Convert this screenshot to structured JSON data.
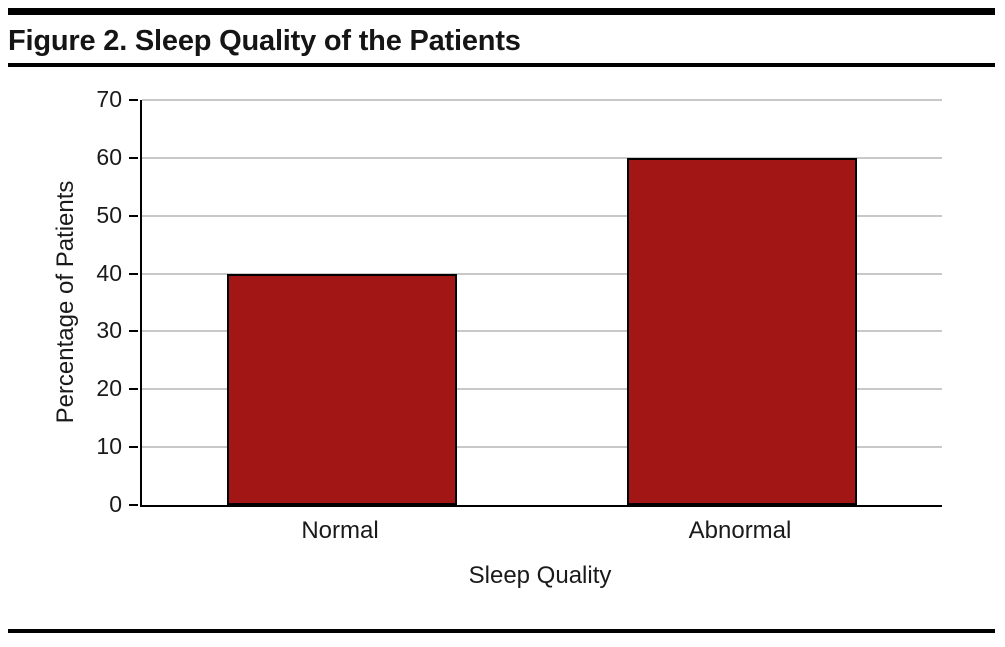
{
  "title": "Figure 2. Sleep Quality of the Patients",
  "chart_data": {
    "type": "bar",
    "title": "Figure 2. Sleep Quality of the Patients",
    "categories": [
      "Normal",
      "Abnormal"
    ],
    "values": [
      40,
      60
    ],
    "xlabel": "Sleep Quality",
    "ylabel": "Percentage of Patients",
    "ylim": [
      0,
      70
    ],
    "yticks": [
      0,
      10,
      20,
      30,
      40,
      50,
      60,
      70
    ],
    "grid": true,
    "legend": "none",
    "bar_color": "#A21616",
    "bar_border_color": "#000000",
    "gridline_color": "#c8c8c8",
    "axis_color": "#000000"
  }
}
